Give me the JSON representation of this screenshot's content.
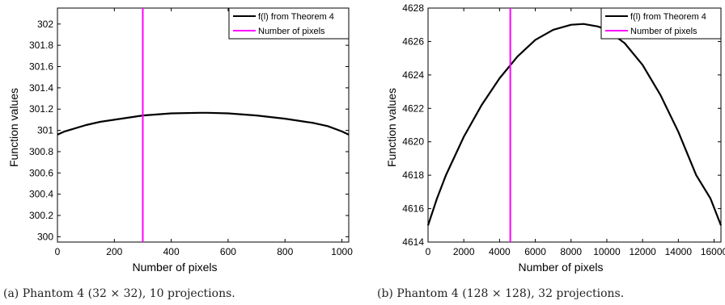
{
  "chart_data": [
    {
      "type": "line",
      "xlabel": "Number of pixels",
      "ylabel": "Function values",
      "xlim": [
        0,
        1024
      ],
      "ylim": [
        299.95,
        302.15
      ],
      "x_ticks": [
        0,
        200,
        400,
        600,
        800,
        1000
      ],
      "y_ticks": [
        300,
        300.2,
        300.4,
        300.6,
        300.8,
        301,
        301.2,
        301.4,
        301.6,
        301.8,
        302
      ],
      "x_tick_labels": [
        "0",
        "200",
        "400",
        "600",
        "800",
        "1000"
      ],
      "y_tick_labels": [
        "300",
        "300.2",
        "300.4",
        "300.6",
        "300.8",
        "301",
        "301.2",
        "301.4",
        "301.6",
        "301.8",
        "302"
      ],
      "legend_position": "top-right",
      "series": [
        {
          "name": "f(l) from Theorem 4",
          "color": "#000000",
          "x": [
            0,
            25,
            50,
            100,
            150,
            200,
            300,
            400,
            500,
            530,
            600,
            700,
            800,
            900,
            950,
            1000,
            1024
          ],
          "y": [
            300.96,
            300.99,
            301.01,
            301.05,
            301.08,
            301.1,
            301.14,
            301.16,
            301.165,
            301.165,
            301.16,
            301.14,
            301.11,
            301.07,
            301.04,
            300.99,
            300.96
          ]
        },
        {
          "name": "Number of pixels",
          "color": "#ff00ff",
          "vertical_x": 300
        }
      ]
    },
    {
      "type": "line",
      "xlabel": "Number of pixels",
      "ylabel": "Function values",
      "xlim": [
        0,
        16384
      ],
      "ylim": [
        4614,
        4628
      ],
      "x_ticks": [
        0,
        2000,
        4000,
        6000,
        8000,
        10000,
        12000,
        14000,
        16000
      ],
      "y_ticks": [
        4614,
        4616,
        4618,
        4620,
        4622,
        4624,
        4626,
        4628
      ],
      "x_tick_labels": [
        "0",
        "2000",
        "4000",
        "6000",
        "8000",
        "10000",
        "12000",
        "14000",
        "16000"
      ],
      "y_tick_labels": [
        "4614",
        "4616",
        "4618",
        "4620",
        "4622",
        "4624",
        "4626",
        "4628"
      ],
      "legend_position": "top-right",
      "series": [
        {
          "name": "f(l) from Theorem 4",
          "color": "#000000",
          "x": [
            0,
            500,
            1000,
            2000,
            3000,
            4000,
            5000,
            6000,
            7000,
            8000,
            8700,
            9500,
            10000,
            11000,
            12000,
            13000,
            14000,
            15000,
            15800,
            16384
          ],
          "y": [
            4615.0,
            4616.6,
            4618.0,
            4620.3,
            4622.2,
            4623.8,
            4625.1,
            4626.1,
            4626.7,
            4627.0,
            4627.05,
            4626.9,
            4626.7,
            4625.9,
            4624.6,
            4622.8,
            4620.6,
            4618.0,
            4616.6,
            4615.0
          ]
        },
        {
          "name": "Number of pixels",
          "color": "#ff00ff",
          "vertical_x": 4600
        }
      ]
    }
  ],
  "captions": [
    "(a) Phantom 4 (32 × 32), 10 projections.",
    "(b) Phantom 4 (128 × 128), 32 projections."
  ]
}
